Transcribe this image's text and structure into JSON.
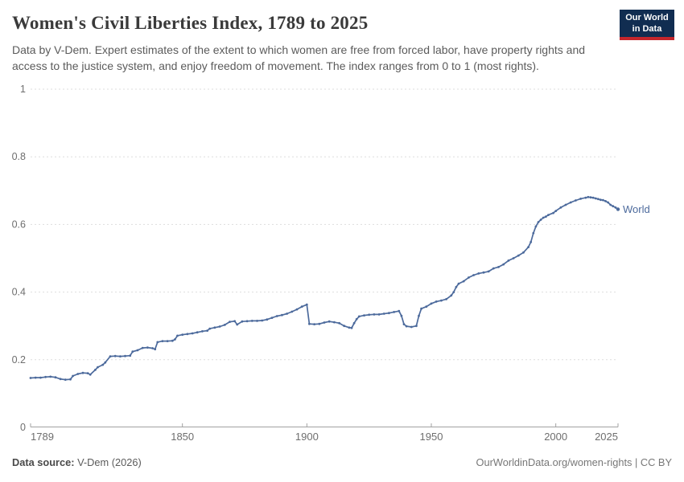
{
  "header": {
    "title": "Women's Civil Liberties Index, 1789 to 2025",
    "subtitle": "Data by V-Dem. Expert estimates of the extent to which women are free from forced labor, have property rights and access to the justice system, and enjoy freedom of movement. The index ranges from 0 to 1 (most rights).",
    "logo": {
      "line1": "Our World",
      "line2": "in Data"
    }
  },
  "chart_data": {
    "type": "line",
    "title": "Women's Civil Liberties Index, 1789 to 2025",
    "xlabel": "",
    "ylabel": "",
    "xlim": [
      1789,
      2025
    ],
    "ylim": [
      0,
      1
    ],
    "x_ticks": [
      1789,
      1850,
      1900,
      1950,
      2000,
      2025
    ],
    "y_ticks": [
      0,
      0.2,
      0.4,
      0.6,
      0.8,
      1
    ],
    "y_tick_labels": [
      "0",
      "0.2",
      "0.4",
      "0.6",
      "0.8",
      "1"
    ],
    "grid": "horizontal-dashed",
    "legend": "end-of-line-label",
    "colors": {
      "grid": "#dddddd",
      "axis": "#a1a1a1",
      "tick_text": "#6e6e6e"
    },
    "series": [
      {
        "name": "World",
        "color": "#4C6A9C",
        "points": [
          [
            1789,
            0.146
          ],
          [
            1791,
            0.147
          ],
          [
            1793,
            0.147
          ],
          [
            1795,
            0.149
          ],
          [
            1797,
            0.15
          ],
          [
            1799,
            0.148
          ],
          [
            1801,
            0.143
          ],
          [
            1803,
            0.141
          ],
          [
            1805,
            0.142
          ],
          [
            1806,
            0.152
          ],
          [
            1808,
            0.158
          ],
          [
            1810,
            0.161
          ],
          [
            1812,
            0.16
          ],
          [
            1813,
            0.156
          ],
          [
            1815,
            0.17
          ],
          [
            1816,
            0.178
          ],
          [
            1818,
            0.185
          ],
          [
            1819,
            0.192
          ],
          [
            1821,
            0.21
          ],
          [
            1823,
            0.211
          ],
          [
            1825,
            0.21
          ],
          [
            1827,
            0.211
          ],
          [
            1829,
            0.212
          ],
          [
            1830,
            0.224
          ],
          [
            1832,
            0.228
          ],
          [
            1834,
            0.235
          ],
          [
            1836,
            0.236
          ],
          [
            1838,
            0.234
          ],
          [
            1839,
            0.231
          ],
          [
            1840,
            0.252
          ],
          [
            1842,
            0.255
          ],
          [
            1844,
            0.255
          ],
          [
            1846,
            0.256
          ],
          [
            1847,
            0.26
          ],
          [
            1848,
            0.271
          ],
          [
            1850,
            0.274
          ],
          [
            1852,
            0.276
          ],
          [
            1854,
            0.278
          ],
          [
            1856,
            0.281
          ],
          [
            1858,
            0.284
          ],
          [
            1860,
            0.286
          ],
          [
            1861,
            0.292
          ],
          [
            1863,
            0.295
          ],
          [
            1865,
            0.298
          ],
          [
            1867,
            0.303
          ],
          [
            1869,
            0.312
          ],
          [
            1871,
            0.314
          ],
          [
            1872,
            0.304
          ],
          [
            1874,
            0.313
          ],
          [
            1876,
            0.314
          ],
          [
            1878,
            0.315
          ],
          [
            1880,
            0.315
          ],
          [
            1882,
            0.316
          ],
          [
            1884,
            0.319
          ],
          [
            1886,
            0.324
          ],
          [
            1888,
            0.329
          ],
          [
            1890,
            0.332
          ],
          [
            1892,
            0.336
          ],
          [
            1894,
            0.342
          ],
          [
            1896,
            0.349
          ],
          [
            1898,
            0.357
          ],
          [
            1900,
            0.363
          ],
          [
            1901,
            0.306
          ],
          [
            1903,
            0.305
          ],
          [
            1905,
            0.306
          ],
          [
            1907,
            0.31
          ],
          [
            1909,
            0.313
          ],
          [
            1911,
            0.311
          ],
          [
            1913,
            0.308
          ],
          [
            1915,
            0.3
          ],
          [
            1917,
            0.295
          ],
          [
            1918,
            0.294
          ],
          [
            1919,
            0.308
          ],
          [
            1920,
            0.32
          ],
          [
            1921,
            0.328
          ],
          [
            1923,
            0.331
          ],
          [
            1925,
            0.333
          ],
          [
            1927,
            0.334
          ],
          [
            1929,
            0.334
          ],
          [
            1931,
            0.336
          ],
          [
            1933,
            0.338
          ],
          [
            1935,
            0.341
          ],
          [
            1937,
            0.344
          ],
          [
            1938,
            0.33
          ],
          [
            1939,
            0.305
          ],
          [
            1940,
            0.299
          ],
          [
            1942,
            0.297
          ],
          [
            1944,
            0.3
          ],
          [
            1945,
            0.33
          ],
          [
            1946,
            0.351
          ],
          [
            1948,
            0.357
          ],
          [
            1950,
            0.366
          ],
          [
            1952,
            0.372
          ],
          [
            1954,
            0.375
          ],
          [
            1956,
            0.379
          ],
          [
            1958,
            0.39
          ],
          [
            1959,
            0.4
          ],
          [
            1960,
            0.415
          ],
          [
            1961,
            0.425
          ],
          [
            1963,
            0.432
          ],
          [
            1965,
            0.443
          ],
          [
            1967,
            0.45
          ],
          [
            1969,
            0.455
          ],
          [
            1971,
            0.458
          ],
          [
            1973,
            0.461
          ],
          [
            1975,
            0.47
          ],
          [
            1977,
            0.474
          ],
          [
            1979,
            0.482
          ],
          [
            1981,
            0.493
          ],
          [
            1983,
            0.5
          ],
          [
            1985,
            0.508
          ],
          [
            1987,
            0.517
          ],
          [
            1989,
            0.533
          ],
          [
            1990,
            0.548
          ],
          [
            1991,
            0.574
          ],
          [
            1992,
            0.594
          ],
          [
            1993,
            0.607
          ],
          [
            1994,
            0.614
          ],
          [
            1995,
            0.62
          ],
          [
            1996,
            0.623
          ],
          [
            1997,
            0.628
          ],
          [
            1999,
            0.634
          ],
          [
            2000,
            0.64
          ],
          [
            2002,
            0.65
          ],
          [
            2004,
            0.658
          ],
          [
            2006,
            0.665
          ],
          [
            2008,
            0.671
          ],
          [
            2010,
            0.676
          ],
          [
            2012,
            0.679
          ],
          [
            2013,
            0.681
          ],
          [
            2014,
            0.68
          ],
          [
            2015,
            0.679
          ],
          [
            2016,
            0.677
          ],
          [
            2017,
            0.675
          ],
          [
            2018,
            0.673
          ],
          [
            2019,
            0.672
          ],
          [
            2020,
            0.669
          ],
          [
            2021,
            0.665
          ],
          [
            2022,
            0.658
          ],
          [
            2023,
            0.654
          ],
          [
            2024,
            0.65
          ],
          [
            2025,
            0.645
          ]
        ]
      }
    ]
  },
  "footer": {
    "datasource_label": "Data source:",
    "datasource_value": " V-Dem (2026)",
    "credit": "OurWorldinData.org/women-rights | CC BY"
  }
}
